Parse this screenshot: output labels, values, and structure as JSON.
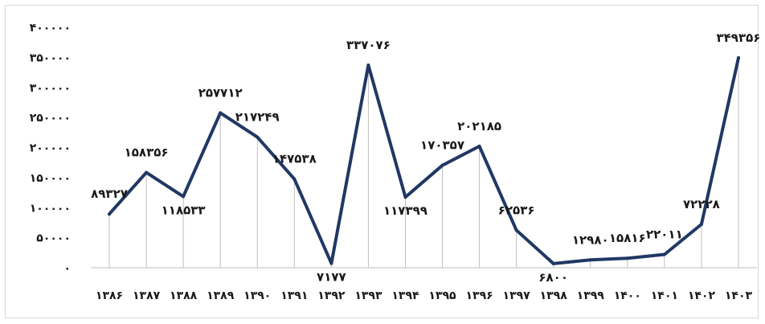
{
  "chart_data": {
    "type": "line",
    "title": "",
    "xlabel": "",
    "ylabel": "",
    "categories": [
      "۱۳۸۶",
      "۱۳۸۷",
      "۱۳۸۸",
      "۱۳۸۹",
      "۱۳۹۰",
      "۱۳۹۱",
      "۱۳۹۲",
      "۱۳۹۳",
      "۱۳۹۴",
      "۱۳۹۵",
      "۱۳۹۶",
      "۱۳۹۷",
      "۱۳۹۸",
      "۱۳۹۹",
      "۱۴۰۰",
      "۱۴۰۱",
      "۱۴۰۲",
      "۱۴۰۳"
    ],
    "values": [
      89327,
      158356,
      118533,
      257712,
      217249,
      147538,
      7177,
      337076,
      117399,
      170357,
      202185,
      62536,
      6800,
      12980,
      15816,
      22011,
      72228,
      349356
    ],
    "data_labels": [
      "۸۹۳۲۷",
      "۱۵۸۳۵۶",
      "۱۱۸۵۳۳",
      "۲۵۷۷۱۲",
      "۲۱۷۲۴۹",
      "۱۴۷۵۳۸",
      "۷۱۷۷",
      "۳۳۷۰۷۶",
      "۱۱۷۳۹۹",
      "۱۷۰۳۵۷",
      "۲۰۲۱۸۵",
      "۶۲۵۳۶",
      "۶۸۰۰",
      "۱۲۹۸۰",
      "۱۵۸۱۶",
      "۲۲۰۱۱",
      "۷۲۲۲۸",
      "۳۴۹۳۵۶"
    ],
    "ylim": [
      0,
      400000
    ],
    "y_ticks": [
      0,
      50000,
      100000,
      150000,
      200000,
      250000,
      300000,
      350000,
      400000
    ],
    "y_tick_labels": [
      "۰",
      "۵۰۰۰۰",
      "۱۰۰۰۰۰",
      "۱۵۰۰۰۰",
      "۲۰۰۰۰۰",
      "۲۵۰۰۰۰",
      "۳۰۰۰۰۰",
      "۳۵۰۰۰۰",
      "۴۰۰۰۰۰"
    ],
    "grid": false,
    "drop_lines": true,
    "legend": "none",
    "colors": {
      "line": "#203864",
      "drop_line": "#bfbfbf",
      "axis": "#bfbfbf",
      "text": "#1a1a1a"
    }
  }
}
